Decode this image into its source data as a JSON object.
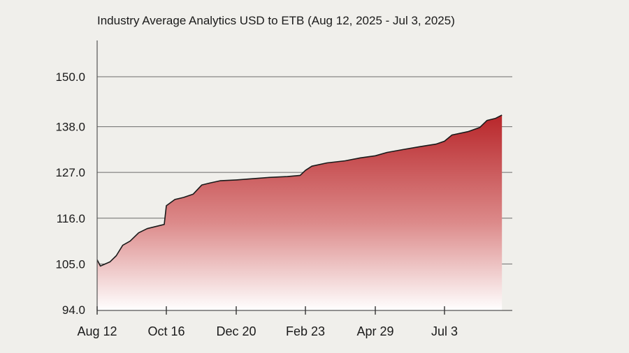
{
  "chart_data": {
    "type": "area",
    "title": "Industry Average Analytics  USD to ETB (Aug 12, 2025 - Jul 3, 2025)",
    "xlabel": "",
    "ylabel": "",
    "ylim": [
      94.0,
      155.0
    ],
    "yticks": [
      94.0,
      105.0,
      116.0,
      127.0,
      138.0,
      150.0
    ],
    "ytick_labels": [
      "94.0",
      "105.0",
      "116.0",
      "127.0",
      "138.0",
      "150.0"
    ],
    "xticks": [
      "Aug 12",
      "Oct 16",
      "Dec 20",
      "Feb 23",
      "Apr 29",
      "Jul 3"
    ],
    "grid": true,
    "series": [
      {
        "points": [
          [
            "Aug 12",
            106.0
          ],
          [
            "Aug 15",
            104.5
          ],
          [
            "Aug 24",
            105.5
          ],
          [
            "Aug 30",
            107.0
          ],
          [
            "Sep 05",
            109.5
          ],
          [
            "Sep 12",
            110.5
          ],
          [
            "Sep 20",
            112.5
          ],
          [
            "Sep 28",
            113.5
          ],
          [
            "Oct 06",
            114.0
          ],
          [
            "Oct 14",
            114.5
          ],
          [
            "Oct 16",
            119.0
          ],
          [
            "Oct 24",
            120.5
          ],
          [
            "Nov 01",
            121.0
          ],
          [
            "Nov 10",
            121.8
          ],
          [
            "Nov 18",
            124.0
          ],
          [
            "Nov 26",
            124.5
          ],
          [
            "Dec 05",
            125.0
          ],
          [
            "Dec 20",
            125.2
          ],
          [
            "Jan 05",
            125.5
          ],
          [
            "Jan 20",
            125.8
          ],
          [
            "Feb 06",
            126.0
          ],
          [
            "Feb 18",
            126.3
          ],
          [
            "Feb 23",
            127.5
          ],
          [
            "Mar 01",
            128.5
          ],
          [
            "Mar 15",
            129.3
          ],
          [
            "Apr 01",
            129.8
          ],
          [
            "Apr 15",
            130.5
          ],
          [
            "Apr 29",
            131.0
          ],
          [
            "May 10",
            131.8
          ],
          [
            "May 25",
            132.5
          ],
          [
            "Jun 10",
            133.2
          ],
          [
            "Jun 25",
            133.8
          ],
          [
            "Jul 03",
            134.5
          ],
          [
            "Jul 10",
            136.0
          ],
          [
            "Jul 25",
            136.8
          ],
          [
            "Aug 05",
            137.8
          ],
          [
            "Aug 12",
            139.5
          ],
          [
            "Aug 20",
            140.0
          ],
          [
            "Aug 26",
            140.8
          ]
        ]
      }
    ]
  }
}
